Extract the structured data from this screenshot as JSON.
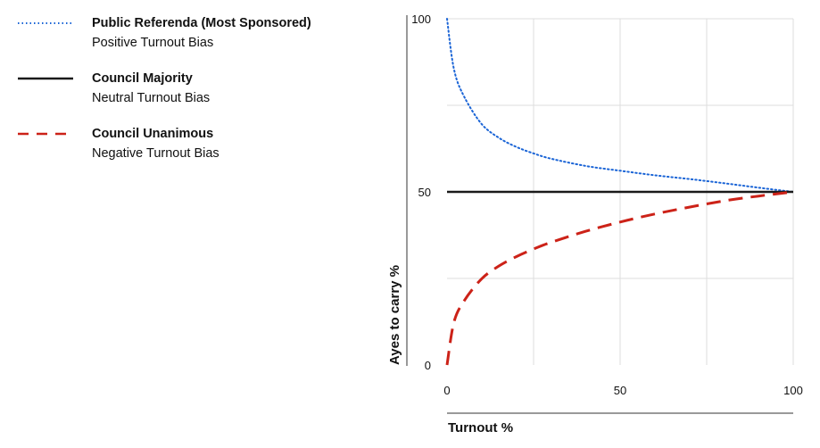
{
  "chart_data": {
    "type": "line",
    "xlabel": "Turnout %",
    "ylabel": "Ayes to carry %",
    "xlim": [
      0,
      100
    ],
    "ylim": [
      0,
      100
    ],
    "x_ticks": [
      0,
      50,
      100
    ],
    "y_ticks": [
      0,
      50,
      100
    ],
    "x_gridlines": [
      0,
      25,
      50,
      75,
      100
    ],
    "y_gridlines": [
      25,
      50,
      75,
      100
    ],
    "grid": true,
    "legend_position": "top-left",
    "series": [
      {
        "name": "Public Referenda (Most Sponsored)",
        "description": "Positive Turnout Bias",
        "color": "#1a64d6",
        "style": "dotted",
        "x": [
          0,
          2,
          5,
          10,
          15,
          20,
          25,
          30,
          40,
          50,
          60,
          70,
          80,
          90,
          100
        ],
        "y": [
          100,
          85.4,
          77.4,
          69.6,
          65.6,
          63,
          61.1,
          59.6,
          57.5,
          56.1,
          54.8,
          53.7,
          52.5,
          51.2,
          50
        ]
      },
      {
        "name": "Council Majority",
        "description": "Neutral Turnout Bias",
        "color": "#1a1a1a",
        "style": "solid",
        "x": [
          0,
          100
        ],
        "y": [
          50,
          50
        ]
      },
      {
        "name": "Council Unanimous",
        "description": "Negative Turnout Bias",
        "color": "#cc2218",
        "style": "dashed",
        "x": [
          0,
          2,
          5,
          10,
          15,
          20,
          25,
          30,
          40,
          50,
          60,
          70,
          80,
          90,
          100
        ],
        "y": [
          0,
          12.4,
          18.6,
          24.9,
          28.6,
          31.3,
          33.5,
          35.4,
          38.6,
          41.3,
          43.6,
          45.6,
          47.4,
          48.8,
          50
        ]
      }
    ]
  }
}
